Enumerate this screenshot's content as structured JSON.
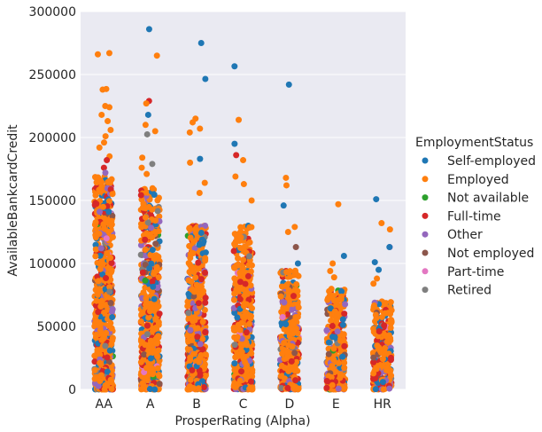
{
  "chart_data": {
    "type": "scatter",
    "subtype": "strip",
    "xlabel": "ProsperRating (Alpha)",
    "ylabel": "AvailableBankcardCredit",
    "categories": [
      "AA",
      "A",
      "B",
      "C",
      "D",
      "E",
      "HR"
    ],
    "ylim": [
      0,
      300000
    ],
    "yticks": [
      0,
      50000,
      100000,
      150000,
      200000,
      250000,
      300000
    ],
    "ytick_labels": [
      "0",
      "50000",
      "100000",
      "150000",
      "200000",
      "250000",
      "300000"
    ],
    "grid": true,
    "background": "#eaeaf2",
    "legend": {
      "title": "EmploymentStatus",
      "placement": "right",
      "entries": [
        {
          "name": "Self-employed",
          "color": "#1f77b4"
        },
        {
          "name": "Employed",
          "color": "#ff7f0e"
        },
        {
          "name": "Not available",
          "color": "#2ca02c"
        },
        {
          "name": "Full-time",
          "color": "#d62728"
        },
        {
          "name": "Other",
          "color": "#9467bd"
        },
        {
          "name": "Not employed",
          "color": "#8c564b"
        },
        {
          "name": "Part-time",
          "color": "#e377c2"
        },
        {
          "name": "Retired",
          "color": "#7f7f7f"
        }
      ]
    },
    "point_cloud_max": {
      "AA": 170000,
      "A": 160000,
      "B": 130000,
      "C": 130000,
      "D": 95000,
      "E": 80000,
      "HR": 70000
    },
    "points": [
      {
        "category": "AA",
        "value": 267000,
        "status": "Employed"
      },
      {
        "category": "AA",
        "value": 266000,
        "status": "Employed"
      },
      {
        "category": "AA",
        "value": 238000,
        "status": "Employed"
      },
      {
        "category": "AA",
        "value": 238500,
        "status": "Employed"
      },
      {
        "category": "AA",
        "value": 225000,
        "status": "Employed"
      },
      {
        "category": "AA",
        "value": 224000,
        "status": "Employed"
      },
      {
        "category": "AA",
        "value": 218000,
        "status": "Employed"
      },
      {
        "category": "AA",
        "value": 213000,
        "status": "Employed"
      },
      {
        "category": "AA",
        "value": 206000,
        "status": "Employed"
      },
      {
        "category": "AA",
        "value": 201000,
        "status": "Employed"
      },
      {
        "category": "AA",
        "value": 196000,
        "status": "Employed"
      },
      {
        "category": "AA",
        "value": 192000,
        "status": "Employed"
      },
      {
        "category": "AA",
        "value": 185000,
        "status": "Employed"
      },
      {
        "category": "AA",
        "value": 182000,
        "status": "Full-time"
      },
      {
        "category": "AA",
        "value": 176000,
        "status": "Full-time"
      },
      {
        "category": "AA",
        "value": 172000,
        "status": "Other"
      },
      {
        "category": "A",
        "value": 286000,
        "status": "Self-employed"
      },
      {
        "category": "A",
        "value": 265000,
        "status": "Employed"
      },
      {
        "category": "A",
        "value": 229000,
        "status": "Full-time"
      },
      {
        "category": "A",
        "value": 227000,
        "status": "Employed"
      },
      {
        "category": "A",
        "value": 218000,
        "status": "Self-employed"
      },
      {
        "category": "A",
        "value": 210000,
        "status": "Employed"
      },
      {
        "category": "A",
        "value": 205000,
        "status": "Employed"
      },
      {
        "category": "A",
        "value": 202500,
        "status": "Retired"
      },
      {
        "category": "A",
        "value": 184000,
        "status": "Employed"
      },
      {
        "category": "A",
        "value": 179000,
        "status": "Retired"
      },
      {
        "category": "A",
        "value": 176000,
        "status": "Employed"
      },
      {
        "category": "A",
        "value": 171000,
        "status": "Employed"
      },
      {
        "category": "B",
        "value": 275000,
        "status": "Self-employed"
      },
      {
        "category": "B",
        "value": 246500,
        "status": "Self-employed"
      },
      {
        "category": "B",
        "value": 215000,
        "status": "Employed"
      },
      {
        "category": "B",
        "value": 212000,
        "status": "Employed"
      },
      {
        "category": "B",
        "value": 207000,
        "status": "Employed"
      },
      {
        "category": "B",
        "value": 204000,
        "status": "Employed"
      },
      {
        "category": "B",
        "value": 183000,
        "status": "Self-employed"
      },
      {
        "category": "B",
        "value": 180000,
        "status": "Employed"
      },
      {
        "category": "B",
        "value": 164000,
        "status": "Employed"
      },
      {
        "category": "B",
        "value": 156000,
        "status": "Employed"
      },
      {
        "category": "C",
        "value": 256500,
        "status": "Self-employed"
      },
      {
        "category": "C",
        "value": 214000,
        "status": "Employed"
      },
      {
        "category": "C",
        "value": 195000,
        "status": "Self-employed"
      },
      {
        "category": "C",
        "value": 186000,
        "status": "Full-time"
      },
      {
        "category": "C",
        "value": 182000,
        "status": "Employed"
      },
      {
        "category": "C",
        "value": 169000,
        "status": "Employed"
      },
      {
        "category": "C",
        "value": 163000,
        "status": "Employed"
      },
      {
        "category": "C",
        "value": 150000,
        "status": "Employed"
      },
      {
        "category": "D",
        "value": 242000,
        "status": "Self-employed"
      },
      {
        "category": "D",
        "value": 168000,
        "status": "Employed"
      },
      {
        "category": "D",
        "value": 162000,
        "status": "Employed"
      },
      {
        "category": "D",
        "value": 146000,
        "status": "Self-employed"
      },
      {
        "category": "D",
        "value": 129000,
        "status": "Employed"
      },
      {
        "category": "D",
        "value": 125000,
        "status": "Employed"
      },
      {
        "category": "D",
        "value": 113000,
        "status": "Not employed"
      },
      {
        "category": "D",
        "value": 100000,
        "status": "Self-employed"
      },
      {
        "category": "E",
        "value": 147000,
        "status": "Employed"
      },
      {
        "category": "E",
        "value": 106000,
        "status": "Self-employed"
      },
      {
        "category": "E",
        "value": 100000,
        "status": "Employed"
      },
      {
        "category": "E",
        "value": 94000,
        "status": "Employed"
      },
      {
        "category": "E",
        "value": 89000,
        "status": "Employed"
      },
      {
        "category": "HR",
        "value": 151000,
        "status": "Self-employed"
      },
      {
        "category": "HR",
        "value": 132000,
        "status": "Employed"
      },
      {
        "category": "HR",
        "value": 127000,
        "status": "Employed"
      },
      {
        "category": "HR",
        "value": 113000,
        "status": "Other"
      },
      {
        "category": "HR",
        "value": 113000,
        "status": "Self-employed"
      },
      {
        "category": "HR",
        "value": 101000,
        "status": "Self-employed"
      },
      {
        "category": "HR",
        "value": 95000,
        "status": "Self-employed"
      },
      {
        "category": "HR",
        "value": 88000,
        "status": "Employed"
      },
      {
        "category": "HR",
        "value": 84000,
        "status": "Employed"
      }
    ]
  }
}
